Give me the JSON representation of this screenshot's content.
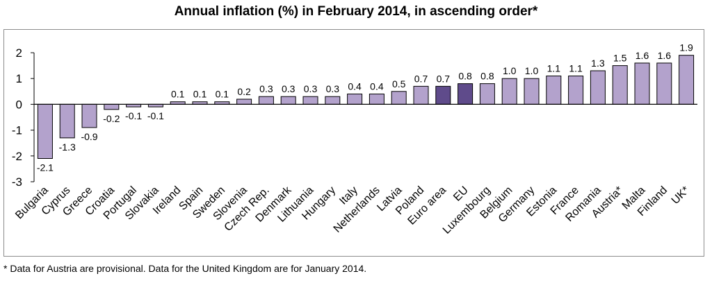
{
  "chart_data": {
    "type": "bar",
    "title": "Annual inflation (%) in February 2014, in ascending order*",
    "categories": [
      "Bulgaria",
      "Cyprus",
      "Greece",
      "Croatia",
      "Portugal",
      "Slovakia",
      "Ireland",
      "Spain",
      "Sweden",
      "Slovenia",
      "Czech Rep.",
      "Denmark",
      "Lithuania",
      "Hungary",
      "Italy",
      "Netherlands",
      "Latvia",
      "Poland",
      "Euro area",
      "EU",
      "Luxembourg",
      "Belgium",
      "Germany",
      "Estonia",
      "France",
      "Romania",
      "Austria*",
      "Malta",
      "Finland",
      "UK*"
    ],
    "values": [
      -2.1,
      -1.3,
      -0.9,
      -0.2,
      -0.1,
      -0.1,
      0.1,
      0.1,
      0.1,
      0.2,
      0.3,
      0.3,
      0.3,
      0.3,
      0.4,
      0.4,
      0.5,
      0.7,
      0.7,
      0.8,
      0.8,
      1.0,
      1.0,
      1.1,
      1.1,
      1.3,
      1.5,
      1.6,
      1.6,
      1.9
    ],
    "value_labels": [
      "-2.1",
      "-1.3",
      "-0.9",
      "-0.2",
      "-0.1",
      "-0.1",
      "0.1",
      "0.1",
      "0.1",
      "0.2",
      "0.3",
      "0.3",
      "0.3",
      "0.3",
      "0.4",
      "0.4",
      "0.5",
      "0.7",
      "0.7",
      "0.8",
      "0.8",
      "1.0",
      "1.0",
      "1.1",
      "1.1",
      "1.3",
      "1.5",
      "1.6",
      "1.6",
      "1.9"
    ],
    "highlighted": [
      "Euro area",
      "EU"
    ],
    "ylim": [
      -3,
      2
    ],
    "yticks": [
      2,
      1,
      0,
      -1,
      -2,
      -3
    ],
    "xlabel": "",
    "ylabel": "",
    "grid": false,
    "colors": {
      "bar": "#b3a2cc",
      "highlight": "#5f4b8b",
      "edge": "#000000"
    }
  },
  "footnote": "* Data for Austria are provisional. Data for the United Kingdom are for January 2014."
}
